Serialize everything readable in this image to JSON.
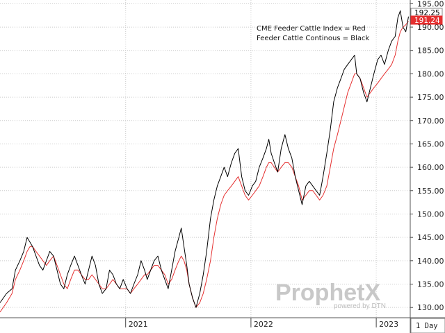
{
  "chart_data": {
    "type": "line",
    "title": "",
    "xlabel": "",
    "ylabel": "",
    "ylim": [
      127.8,
      195.8
    ],
    "y_ticks": [
      130,
      135,
      140,
      145,
      150,
      155,
      160,
      165,
      170,
      175,
      180,
      185,
      190,
      195
    ],
    "y_tick_labels": [
      "130.00",
      "135.00",
      "140.00",
      "145.00",
      "150.00",
      "155.00",
      "160.00",
      "165.00",
      "170.00",
      "175.00",
      "180.00",
      "185.00",
      "190.00",
      "195.00"
    ],
    "x_range": [
      "2020-01-01",
      "2023-04-10"
    ],
    "x_ticks": [
      "2021-01-01",
      "2022-01-01",
      "2023-01-01"
    ],
    "x_tick_labels": [
      "2021",
      "2022",
      "2023"
    ],
    "grid": true,
    "legend_placement": "top-right",
    "annotations": [
      "CME Feeder Cattle Index = Red",
      "Feeder Cattle Continous = Black"
    ],
    "last_values": [
      {
        "label": "192.25",
        "color": "#000000"
      },
      {
        "label": "191.24",
        "color": "#e53030"
      }
    ],
    "series": [
      {
        "color": "#000000",
        "points": [
          [
            "2020-01-01",
            131
          ],
          [
            "2020-01-20",
            133
          ],
          [
            "2020-02-05",
            134
          ],
          [
            "2020-02-15",
            138
          ],
          [
            "2020-02-28",
            140
          ],
          [
            "2020-03-10",
            142
          ],
          [
            "2020-03-20",
            145
          ],
          [
            "2020-03-28",
            144
          ],
          [
            "2020-04-05",
            143
          ],
          [
            "2020-04-15",
            141
          ],
          [
            "2020-04-25",
            139
          ],
          [
            "2020-05-05",
            138
          ],
          [
            "2020-05-15",
            140
          ],
          [
            "2020-05-25",
            142
          ],
          [
            "2020-06-05",
            141
          ],
          [
            "2020-06-15",
            138
          ],
          [
            "2020-06-25",
            135
          ],
          [
            "2020-07-05",
            134
          ],
          [
            "2020-07-15",
            137
          ],
          [
            "2020-07-25",
            139
          ],
          [
            "2020-08-05",
            141
          ],
          [
            "2020-08-15",
            139
          ],
          [
            "2020-08-25",
            137
          ],
          [
            "2020-09-05",
            135
          ],
          [
            "2020-09-15",
            138
          ],
          [
            "2020-09-25",
            141
          ],
          [
            "2020-10-05",
            139
          ],
          [
            "2020-10-15",
            135
          ],
          [
            "2020-10-25",
            133
          ],
          [
            "2020-11-05",
            134
          ],
          [
            "2020-11-15",
            138
          ],
          [
            "2020-11-25",
            137
          ],
          [
            "2020-12-05",
            135
          ],
          [
            "2020-12-15",
            134
          ],
          [
            "2020-12-25",
            136
          ],
          [
            "2021-01-05",
            134
          ],
          [
            "2021-01-15",
            133
          ],
          [
            "2021-01-25",
            135
          ],
          [
            "2021-02-05",
            137
          ],
          [
            "2021-02-15",
            140
          ],
          [
            "2021-02-25",
            138
          ],
          [
            "2021-03-05",
            136
          ],
          [
            "2021-03-15",
            138
          ],
          [
            "2021-03-25",
            140
          ],
          [
            "2021-04-05",
            141
          ],
          [
            "2021-04-15",
            138
          ],
          [
            "2021-04-25",
            136
          ],
          [
            "2021-05-05",
            134
          ],
          [
            "2021-05-15",
            138
          ],
          [
            "2021-05-25",
            142
          ],
          [
            "2021-06-05",
            145
          ],
          [
            "2021-06-12",
            147
          ],
          [
            "2021-06-20",
            143
          ],
          [
            "2021-06-28",
            139
          ],
          [
            "2021-07-05",
            135
          ],
          [
            "2021-07-15",
            132
          ],
          [
            "2021-07-25",
            130
          ],
          [
            "2021-08-05",
            133
          ],
          [
            "2021-08-15",
            137
          ],
          [
            "2021-08-25",
            142
          ],
          [
            "2021-09-05",
            149
          ],
          [
            "2021-09-15",
            153
          ],
          [
            "2021-09-25",
            156
          ],
          [
            "2021-10-05",
            158
          ],
          [
            "2021-10-15",
            160
          ],
          [
            "2021-10-25",
            158
          ],
          [
            "2021-11-05",
            161
          ],
          [
            "2021-11-15",
            163
          ],
          [
            "2021-11-25",
            164
          ],
          [
            "2021-12-05",
            158
          ],
          [
            "2021-12-15",
            155
          ],
          [
            "2021-12-25",
            154
          ],
          [
            "2022-01-05",
            156
          ],
          [
            "2022-01-15",
            157
          ],
          [
            "2022-01-25",
            160
          ],
          [
            "2022-02-05",
            162
          ],
          [
            "2022-02-15",
            164
          ],
          [
            "2022-02-22",
            166
          ],
          [
            "2022-03-01",
            163
          ],
          [
            "2022-03-10",
            161
          ],
          [
            "2022-03-20",
            159
          ],
          [
            "2022-03-30",
            164
          ],
          [
            "2022-04-10",
            167
          ],
          [
            "2022-04-20",
            164
          ],
          [
            "2022-04-30",
            162
          ],
          [
            "2022-05-10",
            158
          ],
          [
            "2022-05-20",
            155
          ],
          [
            "2022-05-30",
            152
          ],
          [
            "2022-06-10",
            156
          ],
          [
            "2022-06-20",
            157
          ],
          [
            "2022-06-30",
            156
          ],
          [
            "2022-07-10",
            155
          ],
          [
            "2022-07-20",
            154
          ],
          [
            "2022-07-30",
            158
          ],
          [
            "2022-08-10",
            163
          ],
          [
            "2022-08-20",
            168
          ],
          [
            "2022-08-30",
            174
          ],
          [
            "2022-09-10",
            177
          ],
          [
            "2022-09-20",
            179
          ],
          [
            "2022-09-30",
            181
          ],
          [
            "2022-10-10",
            182
          ],
          [
            "2022-10-20",
            183
          ],
          [
            "2022-10-30",
            184
          ],
          [
            "2022-11-05",
            180
          ],
          [
            "2022-11-15",
            179
          ],
          [
            "2022-11-25",
            176
          ],
          [
            "2022-12-05",
            174
          ],
          [
            "2022-12-15",
            177
          ],
          [
            "2022-12-25",
            180
          ],
          [
            "2023-01-05",
            183
          ],
          [
            "2023-01-15",
            184
          ],
          [
            "2023-01-25",
            182
          ],
          [
            "2023-02-05",
            185
          ],
          [
            "2023-02-15",
            187
          ],
          [
            "2023-02-25",
            188
          ],
          [
            "2023-03-05",
            192
          ],
          [
            "2023-03-12",
            193.5
          ],
          [
            "2023-03-20",
            190
          ],
          [
            "2023-03-28",
            189
          ],
          [
            "2023-04-05",
            192.25
          ]
        ]
      },
      {
        "color": "#e53030",
        "points": [
          [
            "2020-01-01",
            129
          ],
          [
            "2020-01-20",
            131
          ],
          [
            "2020-02-05",
            133
          ],
          [
            "2020-02-15",
            136
          ],
          [
            "2020-02-28",
            138
          ],
          [
            "2020-03-10",
            140
          ],
          [
            "2020-03-20",
            142
          ],
          [
            "2020-03-28",
            143
          ],
          [
            "2020-04-05",
            143
          ],
          [
            "2020-04-15",
            142
          ],
          [
            "2020-04-25",
            141
          ],
          [
            "2020-05-05",
            140
          ],
          [
            "2020-05-15",
            139
          ],
          [
            "2020-05-25",
            140
          ],
          [
            "2020-06-05",
            141
          ],
          [
            "2020-06-15",
            139
          ],
          [
            "2020-06-25",
            137
          ],
          [
            "2020-07-05",
            135
          ],
          [
            "2020-07-15",
            134
          ],
          [
            "2020-07-25",
            136
          ],
          [
            "2020-08-05",
            138
          ],
          [
            "2020-08-15",
            138
          ],
          [
            "2020-08-25",
            137
          ],
          [
            "2020-09-05",
            136
          ],
          [
            "2020-09-15",
            136
          ],
          [
            "2020-09-25",
            137
          ],
          [
            "2020-10-05",
            136
          ],
          [
            "2020-10-15",
            135
          ],
          [
            "2020-10-25",
            134
          ],
          [
            "2020-11-05",
            134
          ],
          [
            "2020-11-15",
            135
          ],
          [
            "2020-11-25",
            136
          ],
          [
            "2020-12-05",
            135
          ],
          [
            "2020-12-15",
            134
          ],
          [
            "2020-12-25",
            134
          ],
          [
            "2021-01-05",
            134
          ],
          [
            "2021-01-15",
            133
          ],
          [
            "2021-01-25",
            134
          ],
          [
            "2021-02-05",
            135
          ],
          [
            "2021-02-15",
            136
          ],
          [
            "2021-02-25",
            137
          ],
          [
            "2021-03-05",
            137
          ],
          [
            "2021-03-15",
            138
          ],
          [
            "2021-03-25",
            139
          ],
          [
            "2021-04-05",
            139
          ],
          [
            "2021-04-15",
            138
          ],
          [
            "2021-04-25",
            137
          ],
          [
            "2021-05-05",
            135
          ],
          [
            "2021-05-15",
            136
          ],
          [
            "2021-05-25",
            138
          ],
          [
            "2021-06-05",
            140
          ],
          [
            "2021-06-12",
            141
          ],
          [
            "2021-06-20",
            140
          ],
          [
            "2021-06-28",
            138
          ],
          [
            "2021-07-05",
            135
          ],
          [
            "2021-07-15",
            132
          ],
          [
            "2021-07-25",
            130
          ],
          [
            "2021-08-05",
            131
          ],
          [
            "2021-08-15",
            133
          ],
          [
            "2021-08-25",
            136
          ],
          [
            "2021-09-05",
            140
          ],
          [
            "2021-09-15",
            145
          ],
          [
            "2021-09-25",
            149
          ],
          [
            "2021-10-05",
            152
          ],
          [
            "2021-10-15",
            154
          ],
          [
            "2021-10-25",
            155
          ],
          [
            "2021-11-05",
            156
          ],
          [
            "2021-11-15",
            157
          ],
          [
            "2021-11-25",
            158
          ],
          [
            "2021-12-05",
            156
          ],
          [
            "2021-12-15",
            154
          ],
          [
            "2021-12-25",
            153
          ],
          [
            "2022-01-05",
            154
          ],
          [
            "2022-01-15",
            155
          ],
          [
            "2022-01-25",
            156
          ],
          [
            "2022-02-05",
            158
          ],
          [
            "2022-02-15",
            160
          ],
          [
            "2022-02-22",
            161
          ],
          [
            "2022-03-01",
            161
          ],
          [
            "2022-03-10",
            160
          ],
          [
            "2022-03-20",
            159
          ],
          [
            "2022-03-30",
            160
          ],
          [
            "2022-04-10",
            161
          ],
          [
            "2022-04-20",
            161
          ],
          [
            "2022-04-30",
            160
          ],
          [
            "2022-05-10",
            158
          ],
          [
            "2022-05-20",
            156
          ],
          [
            "2022-05-30",
            153
          ],
          [
            "2022-06-10",
            154
          ],
          [
            "2022-06-20",
            155
          ],
          [
            "2022-06-30",
            155
          ],
          [
            "2022-07-10",
            154
          ],
          [
            "2022-07-20",
            153
          ],
          [
            "2022-07-30",
            154
          ],
          [
            "2022-08-10",
            156
          ],
          [
            "2022-08-20",
            160
          ],
          [
            "2022-08-30",
            164
          ],
          [
            "2022-09-10",
            167
          ],
          [
            "2022-09-20",
            170
          ],
          [
            "2022-09-30",
            173
          ],
          [
            "2022-10-10",
            176
          ],
          [
            "2022-10-20",
            178
          ],
          [
            "2022-10-30",
            180
          ],
          [
            "2022-11-05",
            180
          ],
          [
            "2022-11-15",
            179
          ],
          [
            "2022-11-25",
            177
          ],
          [
            "2022-12-05",
            175
          ],
          [
            "2022-12-15",
            176
          ],
          [
            "2022-12-25",
            177
          ],
          [
            "2023-01-05",
            178
          ],
          [
            "2023-01-15",
            179
          ],
          [
            "2023-01-25",
            180
          ],
          [
            "2023-02-05",
            181
          ],
          [
            "2023-02-15",
            182
          ],
          [
            "2023-02-25",
            184
          ],
          [
            "2023-03-05",
            187
          ],
          [
            "2023-03-12",
            189
          ],
          [
            "2023-03-20",
            190
          ],
          [
            "2023-03-28",
            190.5
          ],
          [
            "2023-04-05",
            191.24
          ]
        ]
      }
    ]
  },
  "watermark": {
    "brand": "ProphetX",
    "powered_by": "powered by DTN"
  },
  "timeframe": "1 Day"
}
